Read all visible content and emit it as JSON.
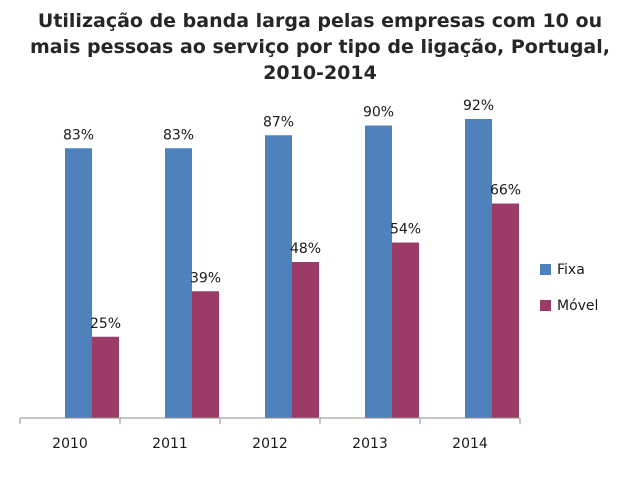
{
  "chart_data": {
    "type": "bar",
    "title_lines": [
      "Utilização de banda larga pelas empresas com 10 ou",
      "mais pessoas ao serviço por tipo de ligação, Portugal,",
      "2010-2014"
    ],
    "title": "Utilização de banda larga pelas empresas com 10 ou mais pessoas ao serviço por tipo de ligação, Portugal, 2010-2014",
    "xlabel": "",
    "ylabel": "",
    "categories": [
      "2010",
      "2011",
      "2012",
      "2013",
      "2014"
    ],
    "series": [
      {
        "name": "Fixa",
        "color": "#4f81bd",
        "values": [
          83,
          83,
          87,
          90,
          92
        ],
        "labels": [
          "83%",
          "83%",
          "87%",
          "90%",
          "92%"
        ]
      },
      {
        "name": "Móvel",
        "color": "#9b3c68",
        "values": [
          25,
          39,
          48,
          54,
          66
        ],
        "labels": [
          "25%",
          "39%",
          "48%",
          "54%",
          "66%"
        ]
      }
    ],
    "ylim": [
      0,
      100
    ],
    "y_axis_visible": false,
    "grid": false,
    "legend": "right"
  }
}
